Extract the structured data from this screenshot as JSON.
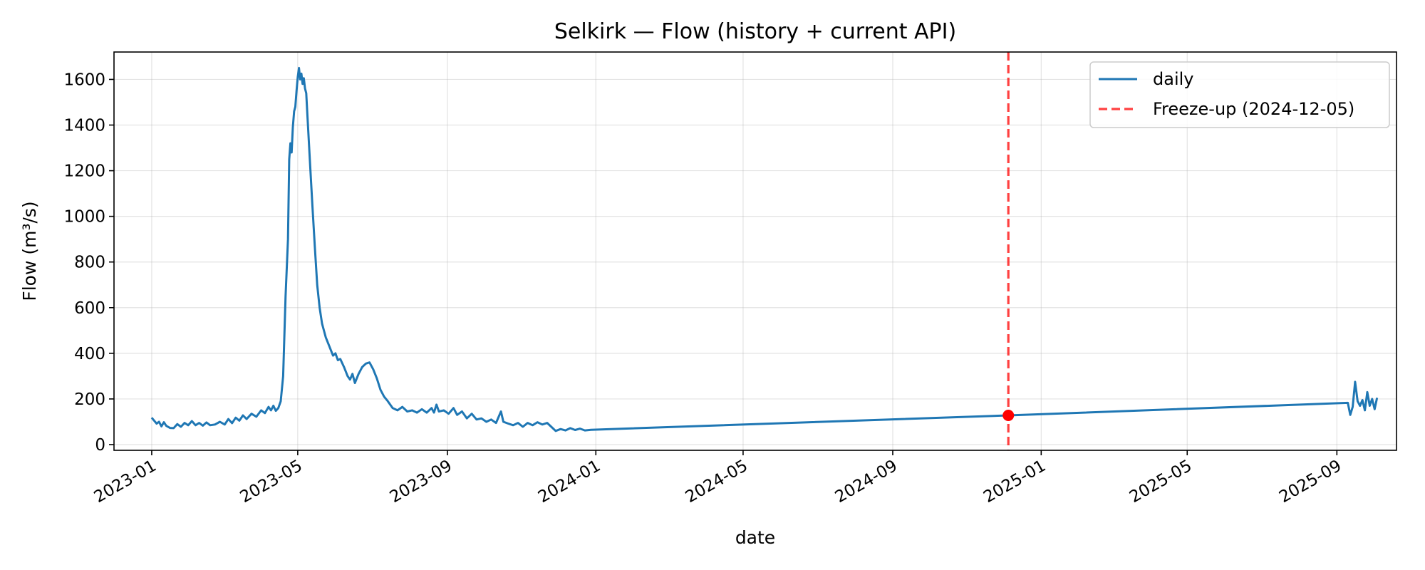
{
  "chart_data": {
    "type": "line",
    "title": "Selkirk — Flow (history + current API)",
    "xlabel": "date",
    "ylabel": "Flow (m³/s)",
    "x_type": "date",
    "xlim": [
      "2022-12-01",
      "2025-10-20"
    ],
    "ylim": [
      -25,
      1720
    ],
    "x_ticks": [
      "2023-01",
      "2023-05",
      "2023-09",
      "2024-01",
      "2024-05",
      "2024-09",
      "2025-01",
      "2025-05",
      "2025-09"
    ],
    "y_ticks": [
      0,
      200,
      400,
      600,
      800,
      1000,
      1200,
      1400,
      1600
    ],
    "grid": true,
    "legend_position": "top-right",
    "colors": {
      "series": "#1f77b4",
      "freeze": "#ff0000",
      "marker": "#ff0000"
    },
    "series": [
      {
        "name": "daily",
        "points": [
          [
            "2023-01-01",
            118
          ],
          [
            "2023-01-03",
            105
          ],
          [
            "2023-01-05",
            92
          ],
          [
            "2023-01-07",
            100
          ],
          [
            "2023-01-09",
            80
          ],
          [
            "2023-01-11",
            98
          ],
          [
            "2023-01-13",
            82
          ],
          [
            "2023-01-16",
            73
          ],
          [
            "2023-01-19",
            72
          ],
          [
            "2023-01-22",
            90
          ],
          [
            "2023-01-25",
            78
          ],
          [
            "2023-01-28",
            95
          ],
          [
            "2023-01-31",
            85
          ],
          [
            "2023-02-03",
            103
          ],
          [
            "2023-02-06",
            85
          ],
          [
            "2023-02-09",
            95
          ],
          [
            "2023-02-12",
            83
          ],
          [
            "2023-02-15",
            97
          ],
          [
            "2023-02-18",
            85
          ],
          [
            "2023-02-22",
            88
          ],
          [
            "2023-02-26",
            100
          ],
          [
            "2023-03-02",
            88
          ],
          [
            "2023-03-05",
            112
          ],
          [
            "2023-03-08",
            94
          ],
          [
            "2023-03-11",
            118
          ],
          [
            "2023-03-14",
            105
          ],
          [
            "2023-03-17",
            128
          ],
          [
            "2023-03-20",
            112
          ],
          [
            "2023-03-24",
            135
          ],
          [
            "2023-03-28",
            122
          ],
          [
            "2023-04-01",
            150
          ],
          [
            "2023-04-04",
            138
          ],
          [
            "2023-04-07",
            165
          ],
          [
            "2023-04-09",
            150
          ],
          [
            "2023-04-11",
            170
          ],
          [
            "2023-04-13",
            148
          ],
          [
            "2023-04-15",
            160
          ],
          [
            "2023-04-17",
            190
          ],
          [
            "2023-04-19",
            300
          ],
          [
            "2023-04-21",
            650
          ],
          [
            "2023-04-23",
            900
          ],
          [
            "2023-04-24",
            1250
          ],
          [
            "2023-04-25",
            1320
          ],
          [
            "2023-04-26",
            1280
          ],
          [
            "2023-04-27",
            1390
          ],
          [
            "2023-04-28",
            1460
          ],
          [
            "2023-04-29",
            1480
          ],
          [
            "2023-04-30",
            1550
          ],
          [
            "2023-05-01",
            1610
          ],
          [
            "2023-05-02",
            1650
          ],
          [
            "2023-05-03",
            1600
          ],
          [
            "2023-05-04",
            1625
          ],
          [
            "2023-05-05",
            1580
          ],
          [
            "2023-05-06",
            1605
          ],
          [
            "2023-05-07",
            1560
          ],
          [
            "2023-05-08",
            1540
          ],
          [
            "2023-05-09",
            1440
          ],
          [
            "2023-05-11",
            1240
          ],
          [
            "2023-05-13",
            1050
          ],
          [
            "2023-05-15",
            870
          ],
          [
            "2023-05-17",
            700
          ],
          [
            "2023-05-19",
            600
          ],
          [
            "2023-05-21",
            530
          ],
          [
            "2023-05-24",
            470
          ],
          [
            "2023-05-27",
            430
          ],
          [
            "2023-05-30",
            390
          ],
          [
            "2023-06-01",
            400
          ],
          [
            "2023-06-03",
            370
          ],
          [
            "2023-06-05",
            375
          ],
          [
            "2023-06-08",
            340
          ],
          [
            "2023-06-11",
            300
          ],
          [
            "2023-06-13",
            285
          ],
          [
            "2023-06-15",
            310
          ],
          [
            "2023-06-17",
            270
          ],
          [
            "2023-06-20",
            310
          ],
          [
            "2023-06-23",
            340
          ],
          [
            "2023-06-26",
            355
          ],
          [
            "2023-06-29",
            360
          ],
          [
            "2023-07-02",
            330
          ],
          [
            "2023-07-05",
            290
          ],
          [
            "2023-07-08",
            240
          ],
          [
            "2023-07-11",
            210
          ],
          [
            "2023-07-14",
            190
          ],
          [
            "2023-07-18",
            160
          ],
          [
            "2023-07-22",
            150
          ],
          [
            "2023-07-26",
            165
          ],
          [
            "2023-07-30",
            145
          ],
          [
            "2023-08-03",
            150
          ],
          [
            "2023-08-07",
            140
          ],
          [
            "2023-08-11",
            155
          ],
          [
            "2023-08-15",
            140
          ],
          [
            "2023-08-19",
            160
          ],
          [
            "2023-08-21",
            140
          ],
          [
            "2023-08-23",
            175
          ],
          [
            "2023-08-25",
            145
          ],
          [
            "2023-08-29",
            150
          ],
          [
            "2023-09-02",
            135
          ],
          [
            "2023-09-06",
            160
          ],
          [
            "2023-09-09",
            130
          ],
          [
            "2023-09-13",
            145
          ],
          [
            "2023-09-17",
            115
          ],
          [
            "2023-09-21",
            135
          ],
          [
            "2023-09-25",
            110
          ],
          [
            "2023-09-29",
            115
          ],
          [
            "2023-10-03",
            100
          ],
          [
            "2023-10-07",
            110
          ],
          [
            "2023-10-11",
            95
          ],
          [
            "2023-10-15",
            145
          ],
          [
            "2023-10-17",
            100
          ],
          [
            "2023-10-21",
            92
          ],
          [
            "2023-10-25",
            85
          ],
          [
            "2023-10-29",
            95
          ],
          [
            "2023-11-02",
            78
          ],
          [
            "2023-11-06",
            95
          ],
          [
            "2023-11-10",
            85
          ],
          [
            "2023-11-14",
            98
          ],
          [
            "2023-11-18",
            88
          ],
          [
            "2023-11-22",
            95
          ],
          [
            "2023-11-26",
            75
          ],
          [
            "2023-11-29",
            60
          ],
          [
            "2023-12-03",
            68
          ],
          [
            "2023-12-07",
            62
          ],
          [
            "2023-12-11",
            72
          ],
          [
            "2023-12-15",
            64
          ],
          [
            "2023-12-19",
            70
          ],
          [
            "2023-12-23",
            62
          ],
          [
            "2023-12-28",
            65
          ],
          [
            "2024-12-05",
            128
          ],
          [
            "2025-09-10",
            183
          ],
          [
            "2025-09-12",
            130
          ],
          [
            "2025-09-14",
            165
          ],
          [
            "2025-09-16",
            275
          ],
          [
            "2025-09-18",
            190
          ],
          [
            "2025-09-20",
            170
          ],
          [
            "2025-09-22",
            195
          ],
          [
            "2025-09-24",
            150
          ],
          [
            "2025-09-26",
            230
          ],
          [
            "2025-09-28",
            170
          ],
          [
            "2025-09-30",
            200
          ],
          [
            "2025-10-02",
            155
          ],
          [
            "2025-10-04",
            205
          ]
        ]
      }
    ],
    "vlines": [
      {
        "name": "Freeze-up (2024-12-05)",
        "x": "2024-12-05",
        "style": "dashed"
      }
    ],
    "markers": [
      {
        "x": "2024-12-05",
        "y": 128
      }
    ]
  }
}
